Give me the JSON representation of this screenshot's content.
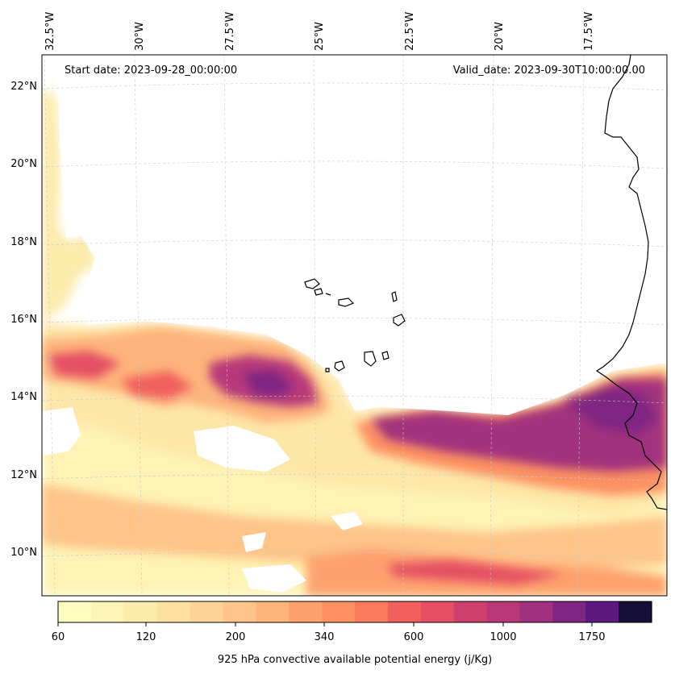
{
  "map": {
    "start_date_text": "Start date: 2023-09-28_00:00:00",
    "valid_date_text": "Valid_date: 2023-09-30T10:00:00.00",
    "lon_labels": [
      "32.5°W",
      "30°W",
      "27.5°W",
      "25°W",
      "22.5°W",
      "20°W",
      "17.5°W"
    ],
    "lat_labels": [
      "22°N",
      "20°N",
      "18°N",
      "16°N",
      "14°N",
      "12°N",
      "10°N"
    ]
  },
  "colorbar": {
    "label": "925 hPa convective available potential energy (j/Kg)",
    "tick_labels": [
      "60",
      "120",
      "200",
      "340",
      "600",
      "1000",
      "1750"
    ],
    "colors": [
      "#fcfdbf",
      "#fcf4b6",
      "#fdebac",
      "#fee1a1",
      "#fed395",
      "#fec488",
      "#feb47b",
      "#fea16e",
      "#fd9162",
      "#f97b5d",
      "#f1605d",
      "#e44f64",
      "#cd406e",
      "#b73779",
      "#a1307e",
      "#7f2582",
      "#5c187f",
      "#150e37"
    ]
  }
}
